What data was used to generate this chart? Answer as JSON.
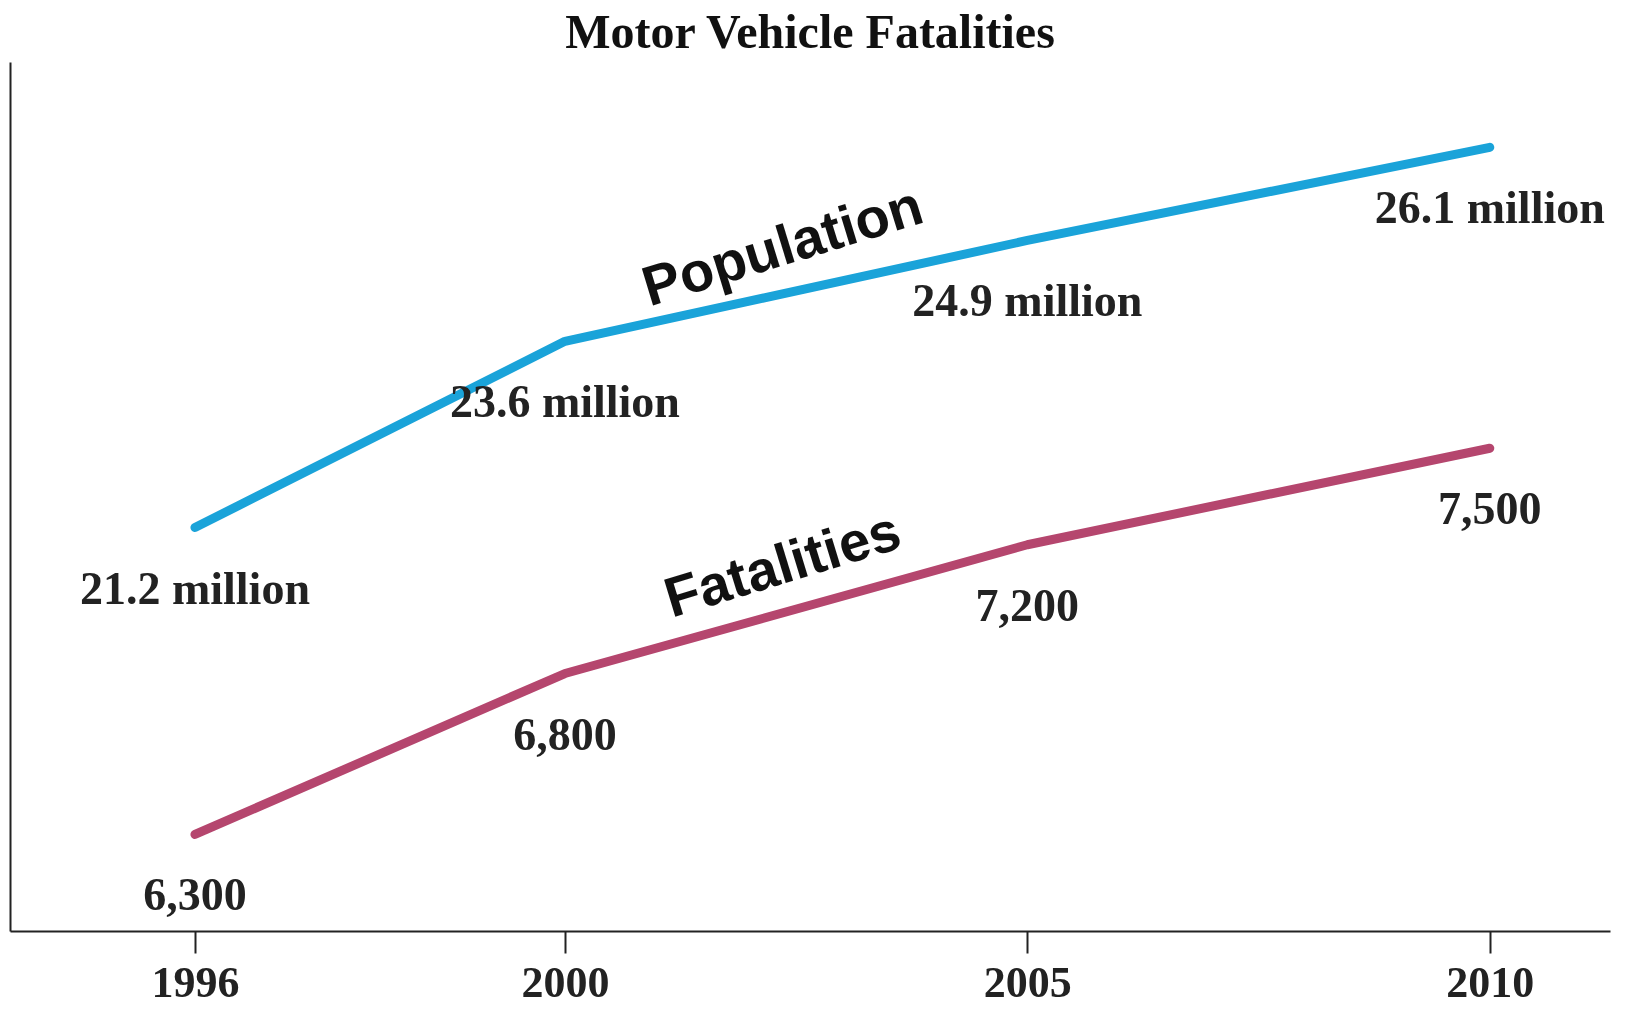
{
  "chart_data": {
    "type": "line",
    "title": "Motor Vehicle Fatalities",
    "x": [
      1996,
      2000,
      2005,
      2010
    ],
    "xlim": [
      1994,
      2011.3
    ],
    "xticks": [
      1996,
      2000,
      2005,
      2010
    ],
    "ylim": [
      16,
      27.2
    ],
    "y2lim": [
      6000,
      8700
    ],
    "tick_labels": "x",
    "grid": false,
    "marker": "none",
    "line_style": "solid",
    "series": [
      {
        "name": "Population",
        "color": "#1aa3d9",
        "values": [
          21.2,
          23.6,
          24.9,
          26.1
        ],
        "value_labels": [
          "21.2 million",
          "23.6 million",
          "24.9 million",
          "26.1 million"
        ]
      },
      {
        "name": "Fatalities",
        "color": "#b5466e",
        "axis": "y2",
        "values": [
          6300,
          6800,
          7200,
          7500
        ],
        "value_labels": [
          "6,300",
          "6,800",
          "7,200",
          "7,500"
        ]
      }
    ]
  }
}
